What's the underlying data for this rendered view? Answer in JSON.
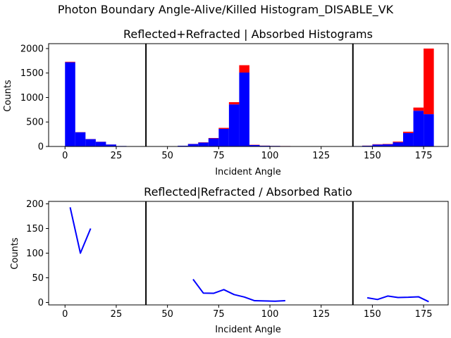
{
  "figure": {
    "suptitle": "Photon Boundary Angle-Alive/Killed Histogram_DISABLE_VK"
  },
  "colors": {
    "alive": "#0000ff",
    "killed": "#ff0000",
    "divider": "#000000",
    "ratio_line": "#0000ff"
  },
  "chart_data": [
    {
      "type": "bar",
      "stacked": true,
      "title": "Reflected+Refracted | Absorbed Histograms",
      "xlabel": "Incident Angle",
      "ylabel": "Counts",
      "xlim": [
        -8,
        187
      ],
      "ylim": [
        0,
        2100
      ],
      "xticks": [
        0,
        25,
        50,
        75,
        100,
        125,
        150,
        175
      ],
      "yticks": [
        0,
        500,
        1000,
        1500,
        2000
      ],
      "bin_width": 5,
      "dividers_x": [
        39.5,
        140.5
      ],
      "x": [
        0,
        5,
        10,
        15,
        20,
        25,
        50,
        55,
        60,
        65,
        70,
        75,
        80,
        85,
        90,
        95,
        100,
        105,
        110,
        140,
        145,
        150,
        155,
        160,
        165,
        170,
        175
      ],
      "series": [
        {
          "color": "alive",
          "values": [
            1720,
            290,
            150,
            95,
            40,
            10,
            5,
            15,
            50,
            80,
            165,
            360,
            860,
            1510,
            30,
            15,
            12,
            8,
            4,
            8,
            15,
            40,
            45,
            85,
            275,
            730,
            660
          ]
        },
        {
          "color": "killed",
          "values": [
            10,
            3,
            2,
            2,
            1,
            0,
            0,
            0,
            2,
            5,
            8,
            20,
            45,
            150,
            5,
            2,
            1,
            1,
            0,
            0,
            2,
            6,
            7,
            14,
            25,
            65,
            1340
          ]
        }
      ]
    },
    {
      "type": "line",
      "title": "Reflected|Refracted / Absorbed Ratio",
      "xlabel": "Incident Angle",
      "ylabel": "Counts",
      "xlim": [
        -8,
        187
      ],
      "ylim": [
        -5,
        205
      ],
      "xticks": [
        0,
        25,
        50,
        75,
        100,
        125,
        150,
        175
      ],
      "yticks": [
        0,
        50,
        100,
        150,
        200
      ],
      "dividers_x": [
        39.5,
        140.5
      ],
      "segments": [
        {
          "x": [
            2.5,
            7.5,
            12.5
          ],
          "y": [
            193,
            100,
            150
          ]
        },
        {
          "x": [
            62.5,
            67.5,
            72.5,
            77.5,
            82.5,
            87.5,
            92.5,
            97.5,
            102.5,
            107.5
          ],
          "y": [
            47,
            19,
            18.5,
            26,
            16,
            11,
            3.5,
            3,
            2.5,
            3.5
          ]
        },
        {
          "x": [
            147.5,
            152.5,
            157.5,
            162.5,
            167.5,
            172.5,
            177.5
          ],
          "y": [
            9.5,
            6,
            13,
            10,
            10.5,
            11.5,
            1.5
          ]
        }
      ]
    }
  ]
}
